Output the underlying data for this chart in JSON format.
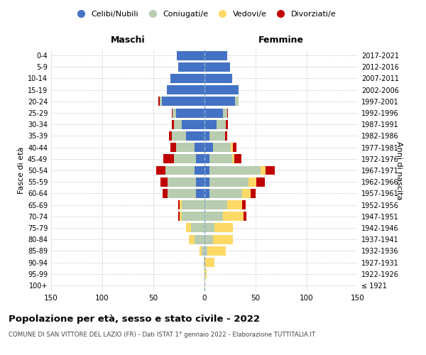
{
  "age_groups": [
    "100+",
    "95-99",
    "90-94",
    "85-89",
    "80-84",
    "75-79",
    "70-74",
    "65-69",
    "60-64",
    "55-59",
    "50-54",
    "45-49",
    "40-44",
    "35-39",
    "30-34",
    "25-29",
    "20-24",
    "15-19",
    "10-14",
    "5-9",
    "0-4"
  ],
  "birth_years": [
    "≤ 1921",
    "1922-1926",
    "1927-1931",
    "1932-1936",
    "1937-1941",
    "1942-1946",
    "1947-1951",
    "1952-1956",
    "1957-1961",
    "1962-1966",
    "1967-1971",
    "1972-1976",
    "1977-1981",
    "1982-1986",
    "1987-1991",
    "1992-1996",
    "1997-2001",
    "2002-2006",
    "2007-2011",
    "2012-2016",
    "2017-2021"
  ],
  "maschi": {
    "celibi": [
      0,
      0,
      0,
      0,
      0,
      0,
      0,
      0,
      8,
      8,
      10,
      8,
      10,
      18,
      22,
      28,
      42,
      37,
      33,
      26,
      27
    ],
    "coniugati": [
      0,
      0,
      1,
      3,
      10,
      13,
      22,
      22,
      28,
      28,
      28,
      22,
      18,
      14,
      8,
      3,
      2,
      0,
      0,
      0,
      0
    ],
    "vedovi": [
      0,
      0,
      0,
      2,
      5,
      5,
      2,
      2,
      0,
      0,
      0,
      0,
      0,
      0,
      0,
      0,
      0,
      0,
      0,
      0,
      0
    ],
    "divorziati": [
      0,
      0,
      0,
      0,
      0,
      0,
      2,
      2,
      5,
      7,
      9,
      10,
      5,
      3,
      2,
      1,
      1,
      0,
      0,
      0,
      0
    ]
  },
  "femmine": {
    "nubili": [
      0,
      0,
      0,
      0,
      0,
      0,
      0,
      0,
      5,
      5,
      5,
      5,
      8,
      5,
      12,
      18,
      30,
      33,
      27,
      25,
      22
    ],
    "coniugate": [
      0,
      0,
      0,
      3,
      8,
      10,
      18,
      22,
      32,
      38,
      50,
      22,
      18,
      15,
      9,
      4,
      3,
      0,
      0,
      0,
      0
    ],
    "vedove": [
      1,
      2,
      10,
      18,
      20,
      18,
      20,
      15,
      8,
      8,
      5,
      2,
      2,
      0,
      0,
      0,
      0,
      0,
      0,
      0,
      0
    ],
    "divorziate": [
      0,
      0,
      0,
      0,
      0,
      0,
      3,
      3,
      5,
      8,
      9,
      7,
      3,
      2,
      2,
      1,
      0,
      0,
      0,
      0,
      0
    ]
  },
  "colors": {
    "celibi_nubili": "#4472C4",
    "coniugati": "#B8CCB0",
    "vedovi": "#FFD966",
    "divorziati": "#C00000"
  },
  "xlim": 150,
  "title": "Popolazione per età, sesso e stato civile - 2022",
  "subtitle": "COMUNE DI SAN VITTORE DEL LAZIO (FR) - Dati ISTAT 1° gennaio 2022 - Elaborazione TUTTITALIA.IT",
  "ylabel_left": "Fasce di età",
  "ylabel_right": "Anni di nascita",
  "xlabel_left": "Maschi",
  "xlabel_right": "Femmine",
  "legend_labels": [
    "Celibi/Nubili",
    "Coniugati/e",
    "Vedovi/e",
    "Divorziati/e"
  ]
}
